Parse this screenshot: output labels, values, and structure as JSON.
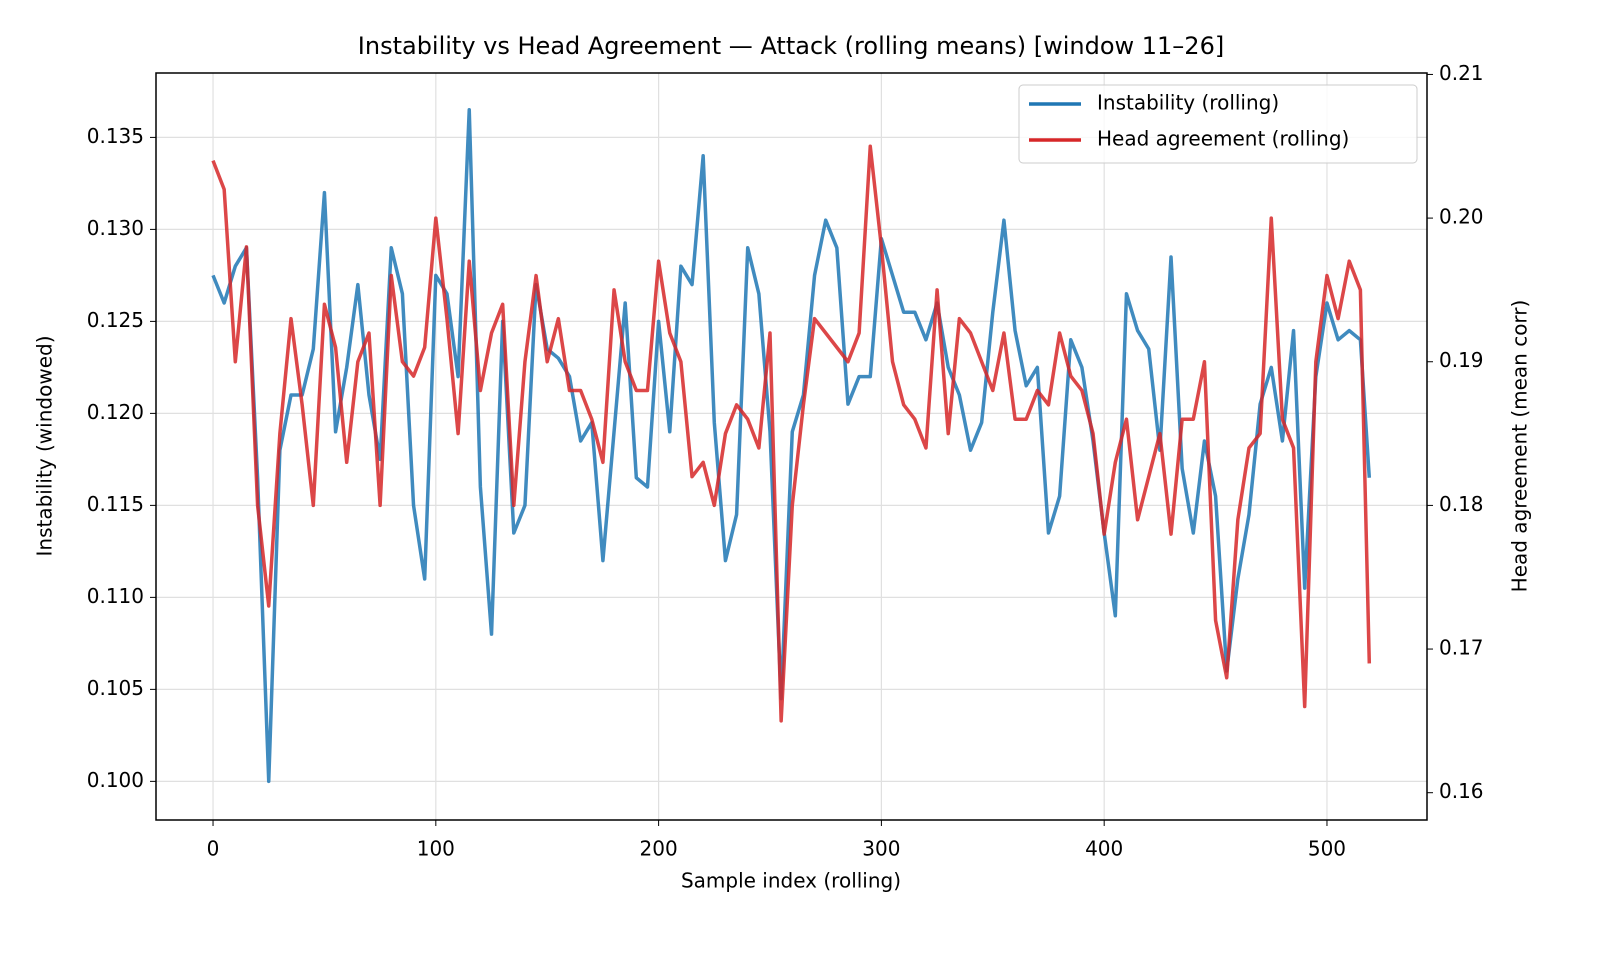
{
  "chart_data": {
    "type": "line",
    "title": "Instability vs Head Agreement — Attack (rolling means)  [window 11–26]",
    "xlabel": "Sample index (rolling)",
    "ylabel": "Instability (windowed)",
    "y2label": "Head agreement (mean corr)",
    "x": [
      0,
      5,
      10,
      15,
      20,
      25,
      30,
      35,
      40,
      45,
      50,
      55,
      60,
      65,
      70,
      75,
      80,
      85,
      90,
      95,
      100,
      105,
      110,
      115,
      120,
      125,
      130,
      135,
      140,
      145,
      150,
      155,
      160,
      165,
      170,
      175,
      180,
      185,
      190,
      195,
      200,
      205,
      210,
      215,
      220,
      225,
      230,
      235,
      240,
      245,
      250,
      255,
      260,
      265,
      270,
      275,
      280,
      285,
      290,
      295,
      300,
      305,
      310,
      315,
      320,
      325,
      330,
      335,
      340,
      345,
      350,
      355,
      360,
      365,
      370,
      375,
      380,
      385,
      390,
      395,
      400,
      405,
      410,
      415,
      420,
      425,
      430,
      435,
      440,
      445,
      450,
      455,
      460,
      465,
      470,
      475,
      480,
      485,
      490,
      495,
      500,
      505,
      510,
      515,
      519
    ],
    "series": [
      {
        "name": "Instability (rolling)",
        "color": "#1f77b4",
        "values": [
          0.1275,
          0.126,
          0.128,
          0.129,
          0.1165,
          0.1,
          0.118,
          0.121,
          0.121,
          0.1235,
          0.132,
          0.119,
          0.1225,
          0.127,
          0.121,
          0.1175,
          0.129,
          0.1265,
          0.115,
          0.111,
          0.1275,
          0.1265,
          0.122,
          0.1365,
          0.116,
          0.108,
          0.125,
          0.1135,
          0.115,
          0.127,
          0.1235,
          0.123,
          0.122,
          0.1185,
          0.1195,
          0.112,
          0.119,
          0.126,
          0.1165,
          0.116,
          0.125,
          0.119,
          0.128,
          0.127,
          0.134,
          0.1195,
          0.112,
          0.1145,
          0.129,
          0.1265,
          0.119,
          0.1045,
          0.119,
          0.121,
          0.1275,
          0.1305,
          0.129,
          0.1205,
          0.122,
          0.122,
          0.1295,
          0.1275,
          0.1255,
          0.1255,
          0.124,
          0.126,
          0.1225,
          0.121,
          0.118,
          0.1195,
          0.1255,
          0.1305,
          0.1245,
          0.1215,
          0.1225,
          0.1135,
          0.1155,
          0.124,
          0.1225,
          0.1185,
          0.1135,
          0.109,
          0.1265,
          0.1245,
          0.1235,
          0.118,
          0.1285,
          0.117,
          0.1135,
          0.1185,
          0.1155,
          0.106,
          0.111,
          0.1145,
          0.1205,
          0.1225,
          0.1185,
          0.1245,
          0.1105,
          0.122,
          0.126,
          0.124,
          0.1245,
          0.124,
          0.1165
        ]
      },
      {
        "name": "Head agreement (rolling)",
        "color": "#d62728",
        "axis": "y2",
        "values": [
          0.204,
          0.202,
          0.19,
          0.198,
          0.18,
          0.173,
          0.185,
          0.193,
          0.187,
          0.18,
          0.194,
          0.191,
          0.183,
          0.19,
          0.192,
          0.18,
          0.196,
          0.19,
          0.189,
          0.191,
          0.2,
          0.193,
          0.185,
          0.197,
          0.188,
          0.192,
          0.194,
          0.18,
          0.19,
          0.196,
          0.19,
          0.193,
          0.188,
          0.188,
          0.186,
          0.183,
          0.195,
          0.19,
          0.188,
          0.188,
          0.197,
          0.192,
          0.19,
          0.182,
          0.183,
          0.18,
          0.185,
          0.187,
          0.186,
          0.184,
          0.192,
          0.165,
          0.18,
          0.187,
          0.193,
          0.192,
          0.191,
          0.19,
          0.192,
          0.205,
          0.198,
          0.19,
          0.187,
          0.186,
          0.184,
          0.195,
          0.185,
          0.193,
          0.192,
          0.19,
          0.188,
          0.192,
          0.186,
          0.186,
          0.188,
          0.187,
          0.192,
          0.189,
          0.188,
          0.185,
          0.178,
          0.183,
          0.186,
          0.179,
          0.182,
          0.185,
          0.178,
          0.186,
          0.186,
          0.19,
          0.172,
          0.168,
          0.179,
          0.184,
          0.185,
          0.2,
          0.186,
          0.184,
          0.166,
          0.19,
          0.196,
          0.193,
          0.197,
          0.195,
          0.169
        ]
      }
    ],
    "xlim": [
      -25.6,
      544.9
    ],
    "xticks": [
      0,
      100,
      200,
      300,
      400,
      500
    ],
    "ylim": [
      0.0979,
      0.1385
    ],
    "yticks": [
      {
        "value": 0.1,
        "label": "0.100"
      },
      {
        "value": 0.105,
        "label": "0.105"
      },
      {
        "value": 0.11,
        "label": "0.110"
      },
      {
        "value": 0.115,
        "label": "0.115"
      },
      {
        "value": 0.12,
        "label": "0.120"
      },
      {
        "value": 0.125,
        "label": "0.125"
      },
      {
        "value": 0.13,
        "label": "0.130"
      },
      {
        "value": 0.135,
        "label": "0.135"
      }
    ],
    "y2lim": [
      0.1581,
      0.2101
    ],
    "y2ticks": [
      0.16,
      0.17,
      0.18,
      0.19,
      {
        "value": 0.2,
        "label": "0.20"
      },
      0.21
    ],
    "grid": true,
    "legend": "upper right"
  }
}
